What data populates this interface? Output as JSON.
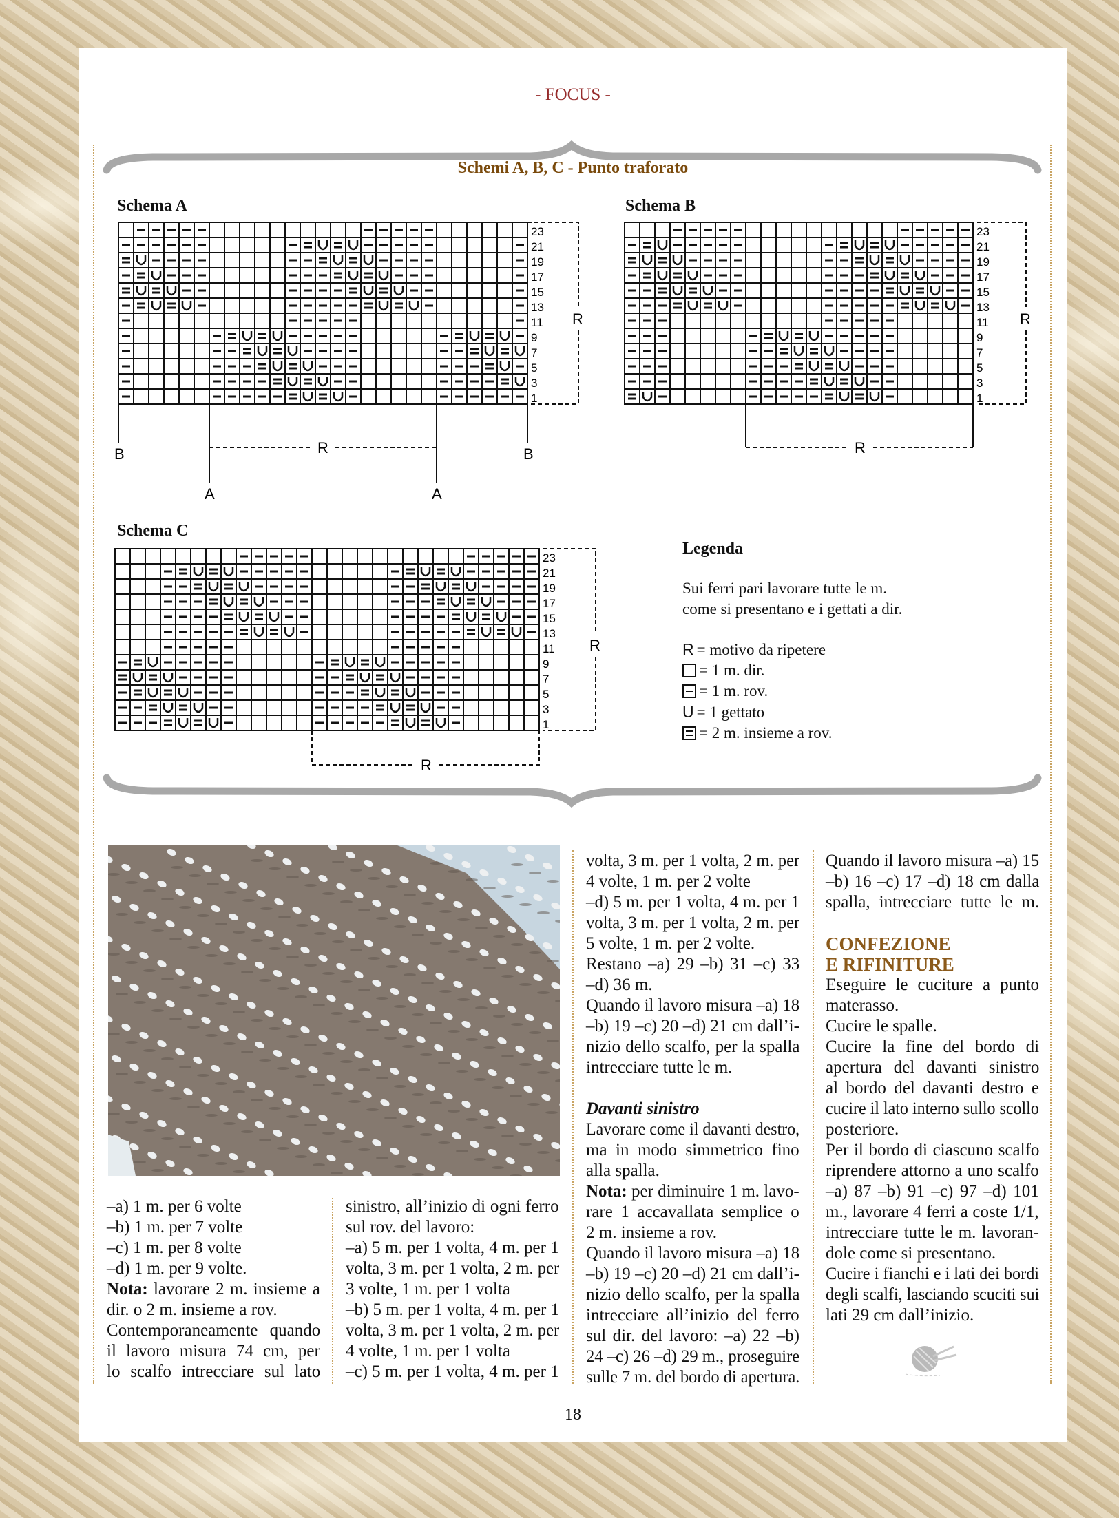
{
  "header": {
    "section": "- FOCUS -"
  },
  "diagram_section": {
    "title": "Schemi A, B, C - Punto traforato",
    "schemas": [
      {
        "label": "Schema A",
        "row_numbers": [
          "23",
          "21",
          "19",
          "17",
          "15",
          "13",
          "11",
          "9",
          "7",
          "5",
          "3",
          "1"
        ],
        "rows": [
          ".-----..........-----......",
          "------.....-=U=U-----.....-",
          "=U----.....--=U=U----.....-",
          "-=U---.....---=U=U---.....-",
          "=U=U--.....----=U=U--.....-",
          "-=U=U-.....-----=U=U-.....-",
          "-..........-----..........-",
          "-.....-=U=U-----.....-=U=U-",
          "-.....--=U=U----.....--=U=U",
          "-.....---=U=U---.....---=U-",
          "-.....----=U=U--.....----=U",
          "-.....-----=U=U-.....------"
        ],
        "repeat_label": "R",
        "marker_labels": {
          "outer": "B",
          "inner": "A",
          "repeat": "R"
        }
      },
      {
        "label": "Schema B",
        "row_numbers": [
          "23",
          "21",
          "19",
          "17",
          "15",
          "13",
          "11",
          "9",
          "7",
          "5",
          "3",
          "1"
        ],
        "rows": [
          "...-----..........-----",
          "-=U-----.....-=U=U-----",
          "=U=U----.....--=U=U----",
          "-=U=U---.....---=U=U---",
          "--=U=U--.....----=U=U--",
          "---=U=U-.....-----=U=U-",
          "---..........-----.....",
          "---.....-=U=U-----.....",
          "---.....--=U=U----.....",
          "---.....---=U=U---.....",
          "---.....----=U=U--.....",
          "=U-.....-----=U=U-....."
        ],
        "repeat_label": "R",
        "marker_labels": {
          "repeat": "R"
        }
      },
      {
        "label": "Schema C",
        "row_numbers": [
          "23",
          "21",
          "19",
          "17",
          "15",
          "13",
          "11",
          "9",
          "7",
          "5",
          "3",
          "1"
        ],
        "rows": [
          "........-----..........-----",
          "...-=U=U-----.....-=U=U-----",
          "...--=U=U----.....--=U=U----",
          "...---=U=U---.....---=U=U---",
          "...----=U=U--.....----=U=U--",
          "...-----=U=U-.....-----=U=U-",
          "...-----..........-----.....",
          "-=U-----.....-=U=U-----.....",
          "=U=U----.....--=U=U----.....",
          "-=U=U---.....---=U=U---.....",
          "--=U=U--.....----=U=U--.....",
          "---=U=U-.....-----=U=U-....."
        ],
        "repeat_label": "R",
        "marker_labels": {
          "repeat": "R"
        }
      }
    ],
    "legend": {
      "title": "Legenda",
      "note_lines": [
        "Sui ferri pari lavorare tutte le m.",
        "come si presentano e i gettati a dir."
      ],
      "items": [
        {
          "symbol": "R",
          "text": "= motivo da ripetere"
        },
        {
          "symbol": "empty-square",
          "text": "= 1 m. dir."
        },
        {
          "symbol": "dash-square",
          "text": "= 1 m. rov."
        },
        {
          "symbol": "U",
          "text": "= 1 gettato"
        },
        {
          "symbol": "double-dash-square",
          "text": "= 2 m. insieme a rov."
        }
      ]
    }
  },
  "body": {
    "columns": [
      {
        "blocks": [
          {
            "type": "p",
            "lines": [
              "–a) 1 m. per 6 volte"
            ]
          },
          {
            "type": "p",
            "lines": [
              "–b) 1 m. per 7 volte"
            ]
          },
          {
            "type": "p",
            "lines": [
              "–c) 1 m. per 8 volte"
            ]
          },
          {
            "type": "p",
            "lines": [
              "–d) 1 m. per 9 volte."
            ]
          },
          {
            "type": "p",
            "lead": "Nota:",
            "lines": [
              " lavorare 2 m. insieme a",
              "dir. o 2 m. insieme a rov."
            ]
          },
          {
            "type": "p",
            "lines": [
              "Contemporaneamente quando",
              "il lavoro misura 74 cm, per",
              "lo scalfo intrecciare sul lato"
            ]
          }
        ]
      },
      {
        "blocks": [
          {
            "type": "p",
            "lines": [
              "sinistro, all’inizio di ogni ferro",
              "sul rov. del lavoro:"
            ]
          },
          {
            "type": "p",
            "lines": [
              "–a) 5 m. per 1 volta, 4 m. per 1",
              "volta, 3 m. per 1 volta, 2 m. per",
              "3 volte, 1 m. per 1 volta"
            ]
          },
          {
            "type": "p",
            "lines": [
              "–b) 5 m. per 1 volta, 4 m. per 1",
              "volta, 3 m. per 1 volta, 2 m. per",
              "4 volte, 1 m. per 1 volta"
            ]
          },
          {
            "type": "p",
            "lines": [
              "–c) 5 m. per 1 volta, 4 m. per 1"
            ]
          }
        ]
      },
      {
        "blocks": [
          {
            "type": "p",
            "lines": [
              "volta, 3 m. per 1 volta, 2 m. per",
              "4 volte, 1 m. per 2 volte"
            ]
          },
          {
            "type": "p",
            "lines": [
              "–d) 5 m. per 1 volta, 4 m. per 1",
              "volta, 3 m. per 1 volta, 2 m. per",
              "5 volte, 1 m. per 2 volte."
            ]
          },
          {
            "type": "p",
            "lines": [
              "Restano –a) 29 –b) 31 –c) 33",
              "–d) 36 m."
            ]
          },
          {
            "type": "p",
            "lines": [
              "Quando il lavoro misura –a) 18",
              "–b) 19 –c) 20 –d) 21 cm dall’i-",
              "nizio dello scalfo, per la spalla",
              "intrecciare tutte le m."
            ]
          },
          {
            "type": "h-italic",
            "lines": [
              "Davanti sinistro"
            ]
          },
          {
            "type": "p",
            "lines": [
              "Lavorare come il davanti destro,",
              "ma in modo simmetrico fino",
              "alla spalla."
            ]
          },
          {
            "type": "p",
            "lead": "Nota:",
            "lines": [
              " per diminuire 1 m. lavo-",
              "rare 1 accavallata semplice o",
              "2 m. insieme a rov."
            ]
          },
          {
            "type": "p",
            "lines": [
              "Quando il lavoro misura –a) 18",
              "–b) 19 –c) 20 –d) 21 cm dall’i-",
              "nizio dello scalfo, per la spalla",
              "intrecciare all’inizio del ferro",
              "sul dir. del lavoro: –a) 22 –b)",
              "24 –c) 26 –d) 29 m., proseguire",
              "sulle 7 m. del bordo di apertura."
            ]
          }
        ]
      },
      {
        "blocks": [
          {
            "type": "p",
            "lines": [
              "Quando il lavoro misura –a) 15",
              "–b) 16 –c) 17 –d) 18 cm dalla",
              "spalla, intrecciare tutte le m."
            ]
          },
          {
            "type": "h-color",
            "lines": [
              "CONFEZIONE",
              "E RIFINITURE"
            ]
          },
          {
            "type": "p",
            "lines": [
              "Eseguire le cuciture a punto",
              "materasso."
            ]
          },
          {
            "type": "p",
            "lines": [
              "Cucire le spalle."
            ]
          },
          {
            "type": "p",
            "lines": [
              "Cucire la fine del bordo di",
              "apertura del davanti sinistro",
              "al bordo del davanti destro e",
              "cucire il lato interno sullo scollo",
              "posteriore."
            ]
          },
          {
            "type": "p",
            "lines": [
              "Per il bordo di ciascuno scalfo",
              "riprendere attorno a uno scalfo",
              "–a) 87 –b) 91 –c) 97 –d) 101",
              "m., lavorare 4 ferri a coste 1/1,",
              "intrecciare tutte le m. lavoran-",
              "dole come si presentano."
            ]
          },
          {
            "type": "p",
            "lines": [
              "Cucire i fianchi e i lati dei bordi",
              "degli scalfi, lasciando scuciti sui",
              "lati 29 cm dall’inizio."
            ]
          }
        ]
      }
    ]
  },
  "footer": {
    "page_number": "18"
  },
  "colors": {
    "section_header": "#962c2c",
    "title": "#7a4a0c",
    "heading": "#8b5a1b",
    "brace": "#a8a8a8",
    "rule": "#c9a463"
  }
}
